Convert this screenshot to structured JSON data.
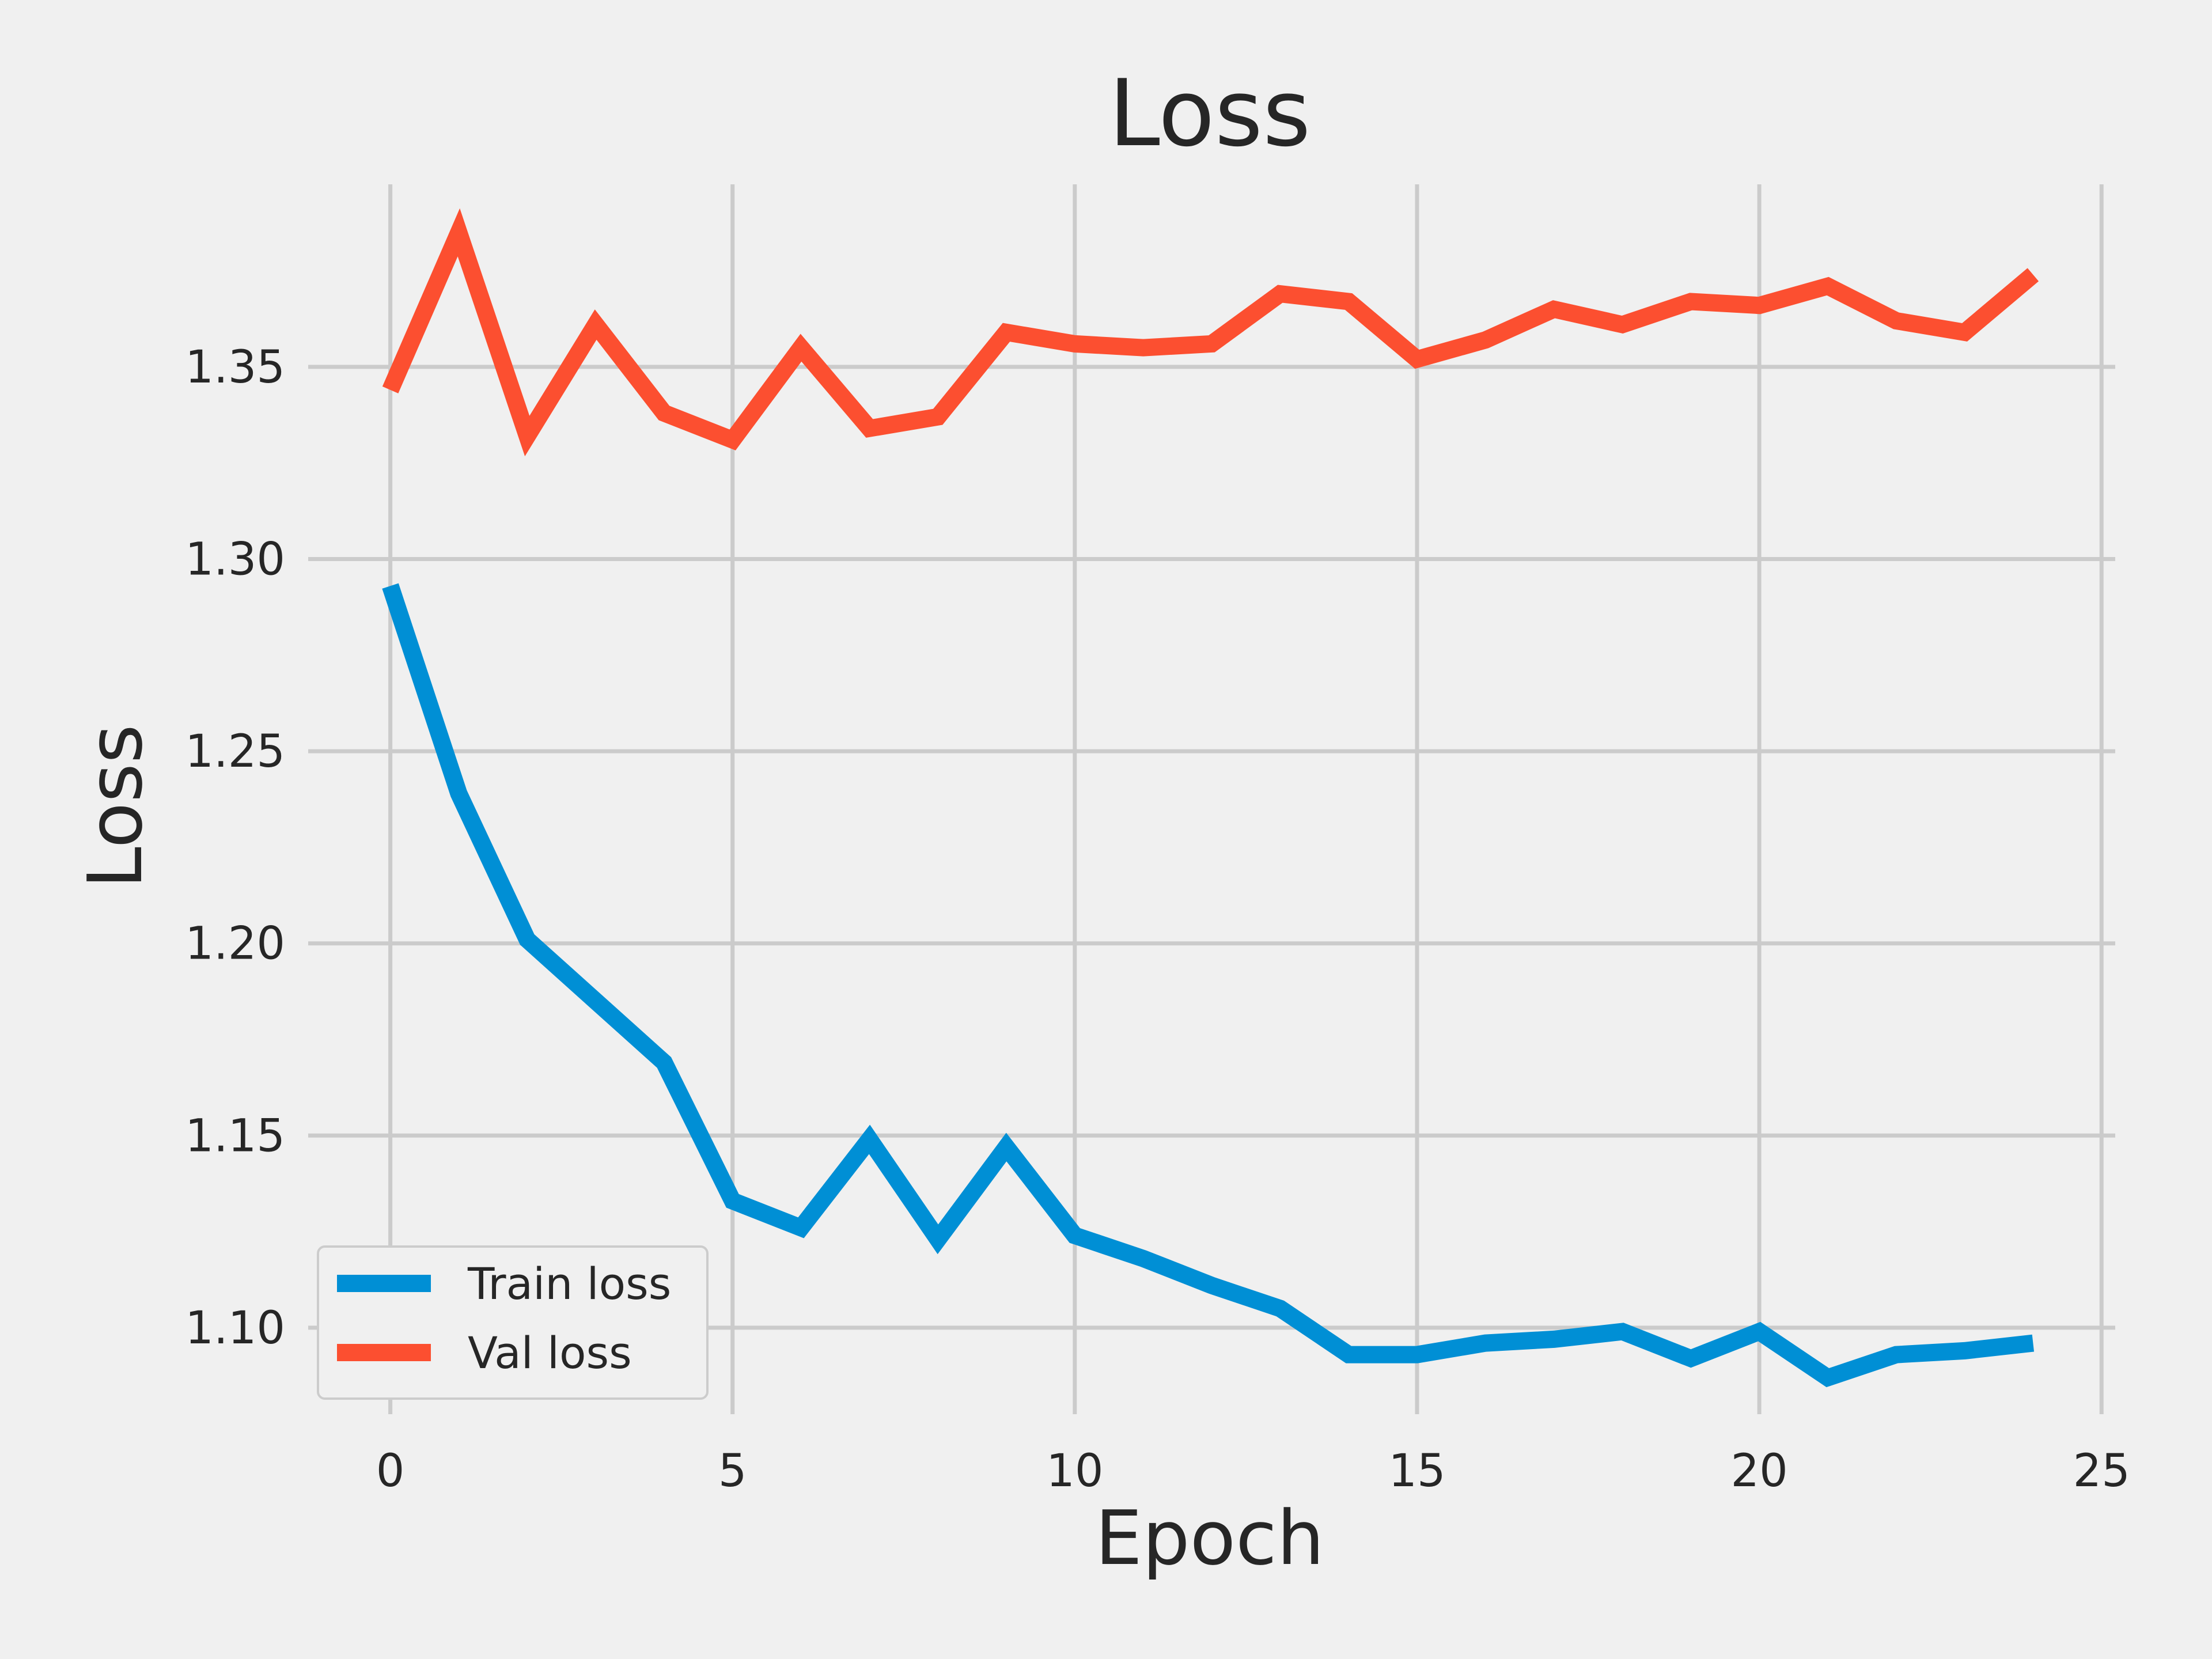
{
  "chart_data": {
    "type": "line",
    "title": "Loss",
    "xlabel": "Epoch",
    "ylabel": "Loss",
    "xlim": [
      -1.2,
      25.2
    ],
    "ylim": [
      1.0775,
      1.3975
    ],
    "xticks": [
      0,
      5,
      10,
      15,
      20,
      25
    ],
    "xtick_labels": [
      "0",
      "5",
      "10",
      "15",
      "20",
      "25"
    ],
    "yticks": [
      1.1,
      1.15,
      1.2,
      1.25,
      1.3,
      1.35
    ],
    "ytick_labels": [
      "1.10",
      "1.15",
      "1.20",
      "1.25",
      "1.30",
      "1.35"
    ],
    "grid": true,
    "legend_position": "lower-left",
    "x": [
      0,
      1,
      2,
      3,
      4,
      5,
      6,
      7,
      8,
      9,
      10,
      11,
      12,
      13,
      14,
      15,
      16,
      17,
      18,
      19,
      20,
      21,
      22,
      23,
      24
    ],
    "series": [
      {
        "name": "Train loss",
        "color": "#008fd5",
        "values": [
          1.293,
          1.239,
          1.201,
          1.185,
          1.169,
          1.133,
          1.126,
          1.149,
          1.123,
          1.147,
          1.124,
          1.118,
          1.111,
          1.105,
          1.093,
          1.093,
          1.096,
          1.097,
          1.099,
          1.092,
          1.099,
          1.087,
          1.093,
          1.094,
          1.096
        ]
      },
      {
        "name": "Val loss",
        "color": "#fc4f30",
        "values": [
          1.344,
          1.385,
          1.332,
          1.361,
          1.338,
          1.331,
          1.355,
          1.334,
          1.337,
          1.359,
          1.356,
          1.355,
          1.356,
          1.369,
          1.367,
          1.352,
          1.357,
          1.365,
          1.361,
          1.367,
          1.366,
          1.371,
          1.362,
          1.359,
          1.374
        ]
      }
    ]
  }
}
